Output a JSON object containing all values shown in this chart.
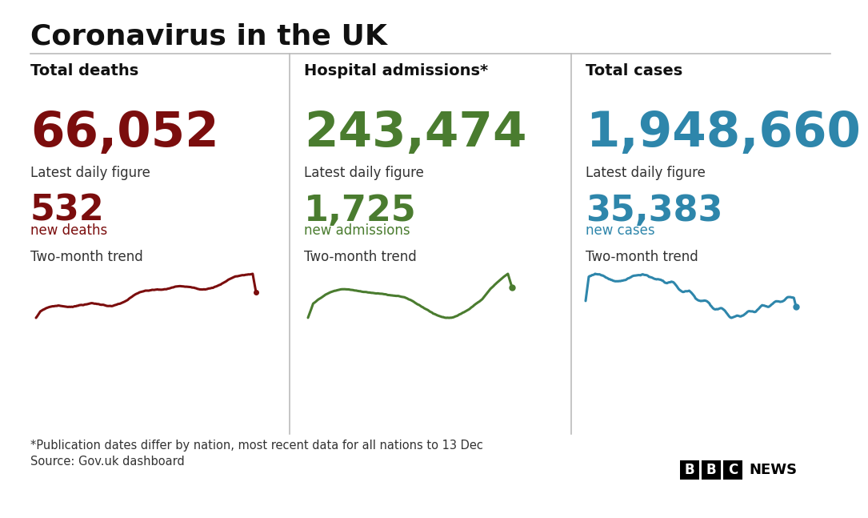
{
  "title": "Coronavirus in the UK",
  "background_color": "#ffffff",
  "title_color": "#111111",
  "title_fontsize": 26,
  "divider_color": "#bbbbbb",
  "panels": [
    {
      "label": "Total deaths",
      "total": "66,052",
      "total_color": "#7b0d0d",
      "daily_label": "Latest daily figure",
      "daily_value": "532",
      "daily_value_color": "#7b0d0d",
      "daily_unit": "new deaths",
      "daily_unit_color": "#7b0d0d",
      "trend_label": "Two-month trend",
      "trend_color": "#7b0d0d"
    },
    {
      "label": "Hospital admissions*",
      "total": "243,474",
      "total_color": "#4a7c2f",
      "daily_label": "Latest daily figure",
      "daily_value": "1,725",
      "daily_value_color": "#4a7c2f",
      "daily_unit": "new admissions",
      "daily_unit_color": "#4a7c2f",
      "trend_label": "Two-month trend",
      "trend_color": "#4a7c2f"
    },
    {
      "label": "Total cases",
      "total": "1,948,660",
      "total_color": "#2e86ab",
      "daily_label": "Latest daily figure",
      "daily_value": "35,383",
      "daily_value_color": "#2e86ab",
      "daily_unit": "new cases",
      "daily_unit_color": "#2e86ab",
      "trend_label": "Two-month trend",
      "trend_color": "#2e86ab"
    }
  ],
  "footnote1": "*Publication dates differ by nation, most recent data for all nations to 13 Dec",
  "footnote2": "Source: Gov.uk dashboard",
  "footnote_color": "#333333",
  "footnote_fontsize": 10.5
}
